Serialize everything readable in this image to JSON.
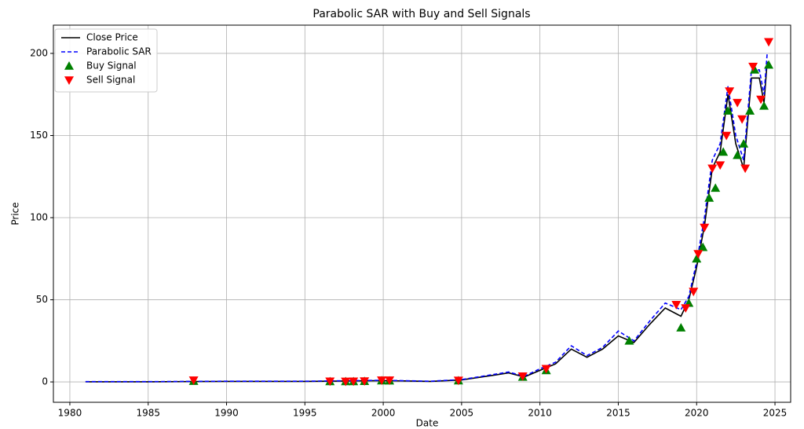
{
  "chart_data": {
    "type": "line",
    "title": "Parabolic SAR with Buy and Sell Signals",
    "xlabel": "Date",
    "ylabel": "Price",
    "x": [
      1981,
      1985,
      1990,
      1995,
      2000,
      2003,
      2005,
      2007,
      2008,
      2009,
      2010,
      2011,
      2012,
      2013,
      2014,
      2015,
      2016,
      2017,
      2018,
      2019,
      2019.5,
      2020,
      2020.5,
      2021,
      2021.5,
      2022,
      2022.5,
      2023,
      2023.5,
      2024,
      2024.3,
      2024.5
    ],
    "series": [
      {
        "name": "Close Price",
        "color": "#000000",
        "dash": false,
        "values": [
          0.1,
          0.1,
          0.3,
          0.3,
          0.8,
          0.3,
          1.2,
          4,
          5.5,
          3,
          7,
          11,
          20,
          15,
          20,
          28,
          24,
          35,
          45,
          40,
          50,
          70,
          95,
          130,
          140,
          175,
          145,
          130,
          185,
          185,
          170,
          195
        ]
      },
      {
        "name": "Parabolic SAR",
        "color": "#0000ff",
        "dash": true,
        "values": [
          0.2,
          0.2,
          0.4,
          0.4,
          1.0,
          0.4,
          1.4,
          4.5,
          6,
          3.5,
          8,
          12,
          22,
          16,
          21,
          31,
          25,
          37,
          48,
          44,
          52,
          73,
          100,
          135,
          145,
          180,
          150,
          135,
          190,
          190,
          175,
          200
        ]
      }
    ],
    "signals": [
      {
        "name": "Buy Signal",
        "color": "#008000",
        "marker": "up",
        "x": [
          1987.9,
          1996.6,
          1997.6,
          1998.1,
          1998.8,
          1999.9,
          2000.4,
          2004.8,
          2008.9,
          2010.4,
          2015.7,
          2019,
          2019.5,
          2020,
          2020.4,
          2020.8,
          2021.2,
          2021.7,
          2022.0,
          2022.6,
          2023.0,
          2023.4,
          2023.7,
          2024.3,
          2024.6
        ],
        "values": [
          0.5,
          0.3,
          0.3,
          0.3,
          0.4,
          0.8,
          0.7,
          0.8,
          3,
          7,
          25,
          33,
          48,
          75,
          82,
          112,
          118,
          140,
          165,
          138,
          145,
          165,
          190,
          168,
          193
        ]
      },
      {
        "name": "Sell Signal",
        "color": "#ff0000",
        "marker": "down",
        "x": [
          1987.9,
          1996.6,
          1997.6,
          1998.1,
          1998.8,
          1999.9,
          2000.4,
          2004.8,
          2008.9,
          2010.4,
          2018.7,
          2019.3,
          2019.8,
          2020.1,
          2020.5,
          2021,
          2021.5,
          2021.9,
          2022.1,
          2022.6,
          2022.9,
          2023.1,
          2023.6,
          2024.1,
          2024.6
        ],
        "values": [
          1,
          0.4,
          0.3,
          0.4,
          0.5,
          1,
          1,
          0.9,
          3.5,
          8,
          47,
          45,
          55,
          78,
          94,
          130,
          132,
          150,
          177,
          170,
          160,
          130,
          192,
          172,
          207
        ]
      }
    ],
    "xlim": [
      1978.95,
      2026.0
    ],
    "ylim": [
      -12.4,
      217.2
    ],
    "xticks": [
      1980,
      1985,
      1990,
      1995,
      2000,
      2005,
      2010,
      2015,
      2020,
      2025
    ],
    "yticks": [
      0,
      50,
      100,
      150,
      200
    ],
    "grid": true,
    "legend": "upper left"
  }
}
